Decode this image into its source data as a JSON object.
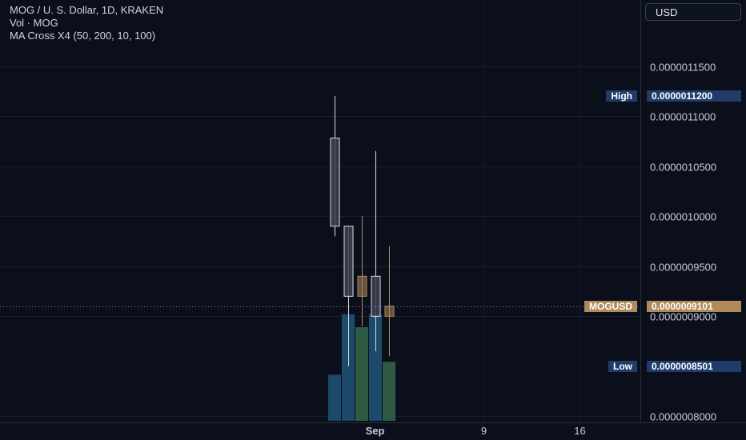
{
  "legend": {
    "title": "MOG / U. S. Dollar, 1D, KRAKEN",
    "volume": "Vol · MOG",
    "indicator": "MA Cross X4 (50, 200, 10, 100)"
  },
  "currency_button": {
    "label": "USD"
  },
  "markers": {
    "high": {
      "label": "High",
      "value": "0.0000011200",
      "color": "#1f3c6b"
    },
    "last": {
      "label": "MOGUSD",
      "value": "0.0000009101",
      "color": "#b08a5a"
    },
    "low": {
      "label": "Low",
      "value": "0.0000008501",
      "color": "#1f3c6b"
    }
  },
  "colors": {
    "background": "#0b0f1c",
    "grid": "#1a1f2e",
    "up_candle": "#b08a5a",
    "down_candle": "#d9dce3",
    "volume_blue": "#1b4a6b",
    "volume_green": "#2f5b44"
  },
  "chart_data": {
    "type": "candlestick",
    "title": "MOG / U. S. Dollar, 1D, KRAKEN",
    "ylim": [
      7.94e-07,
      1.216e-06
    ],
    "y_ticks": [
      "0.0000008000",
      "0.0000009000",
      "0.0000009500",
      "0.0000010000",
      "0.0000010500",
      "0.0000011000",
      "0.0000011500"
    ],
    "x_ticks": [
      "Sep",
      "9",
      "16"
    ],
    "grid": true,
    "candles": [
      {
        "open": 1.078e-06,
        "high": 1.12e-06,
        "low": 9.8e-07,
        "close": 9.9e-07,
        "direction": "down"
      },
      {
        "open": 9.9e-07,
        "high": 9.9e-07,
        "low": 8.501e-07,
        "close": 9.2e-07,
        "direction": "down"
      },
      {
        "open": 9.2e-07,
        "high": 1e-06,
        "low": 8.9e-07,
        "close": 9.4e-07,
        "direction": "up"
      },
      {
        "open": 9.4e-07,
        "high": 1.065e-06,
        "low": 8.65e-07,
        "close": 9e-07,
        "direction": "down"
      },
      {
        "open": 9e-07,
        "high": 9.7e-07,
        "low": 8.6e-07,
        "close": 9.101e-07,
        "direction": "up"
      }
    ],
    "volume": [
      {
        "value": 0.32,
        "color": "blue"
      },
      {
        "value": 0.74,
        "color": "blue"
      },
      {
        "value": 0.65,
        "color": "green"
      },
      {
        "value": 0.74,
        "color": "blue"
      },
      {
        "value": 0.41,
        "color": "green"
      }
    ]
  }
}
